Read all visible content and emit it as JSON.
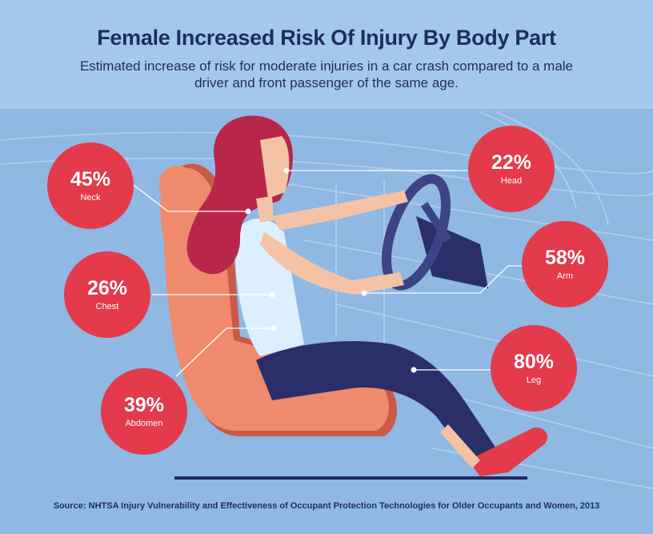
{
  "title": "Female Increased Risk Of Injury By Body Part",
  "subtitle": "Estimated increase of risk for moderate injuries in a car crash compared to a male driver and front passenger of the same age.",
  "source": "Source: NHTSA Injury Vulnerability and Effectiveness of Occupant Protection Technologies for Older Occupants and Women, 2013",
  "colors": {
    "background": "#8fb8e3",
    "header_band": "#a6c7ec",
    "bubble": "#e33a4c",
    "title": "#1f2d5e",
    "seat": "#ef8a6c",
    "hair": "#b8264a",
    "pants": "#2a2f6a"
  },
  "chart_data": {
    "type": "table",
    "categories": [
      "Neck",
      "Chest",
      "Abdomen",
      "Head",
      "Arm",
      "Leg"
    ],
    "values": [
      45,
      26,
      39,
      22,
      58,
      80
    ],
    "unit": "%"
  },
  "callouts": [
    {
      "id": "neck",
      "pct": "45%",
      "part": "Neck"
    },
    {
      "id": "chest",
      "pct": "26%",
      "part": "Chest"
    },
    {
      "id": "abdomen",
      "pct": "39%",
      "part": "Abdomen"
    },
    {
      "id": "head",
      "pct": "22%",
      "part": "Head"
    },
    {
      "id": "arm",
      "pct": "58%",
      "part": "Arm"
    },
    {
      "id": "leg",
      "pct": "80%",
      "part": "Leg"
    }
  ]
}
